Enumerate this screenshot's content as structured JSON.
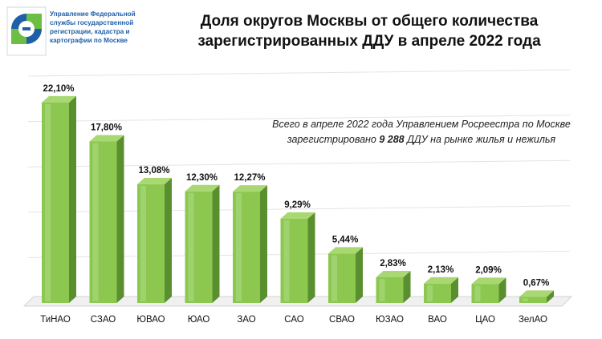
{
  "header": {
    "org_lines": [
      "Управление Федеральной",
      "службы государственной",
      "регистрации, кадастра и",
      "картографии по Москве"
    ],
    "logo_icon": "rosreestr-logo-icon"
  },
  "title_lines": [
    "Доля округов Москвы от общего количества",
    "зарегистрированных ДДУ в апреле 2022 года"
  ],
  "note": {
    "line1": "Всего в апреле 2022 года Управлением Росреестра по Москве",
    "line2_before": "зарегистрировано ",
    "line2_bold": "9 288",
    "line2_after": " ДДУ на рынке жилья и нежилья"
  },
  "colors": {
    "bar_front": "#8cc850",
    "bar_side": "#5a8f2f",
    "bar_top": "#a9d873",
    "logo_blue": "#1e5fa8",
    "logo_green": "#6cbe45"
  },
  "chart_data": {
    "type": "bar",
    "categories": [
      "ТиНАО",
      "СЗАО",
      "ЮВАО",
      "ЮАО",
      "ЗАО",
      "САО",
      "СВАО",
      "ЮЗАО",
      "ВАО",
      "ЦАО",
      "ЗелАО"
    ],
    "values": [
      22.1,
      17.8,
      13.08,
      12.3,
      12.27,
      9.29,
      5.44,
      2.83,
      2.13,
      2.09,
      0.67
    ],
    "value_labels": [
      "22,10%",
      "17,80%",
      "13,08%",
      "12,30%",
      "12,27%",
      "9,29%",
      "5,44%",
      "2,83%",
      "2,13%",
      "2,09%",
      "0,67%"
    ],
    "ylim": [
      0,
      25
    ],
    "grid": true,
    "legend": "none"
  }
}
